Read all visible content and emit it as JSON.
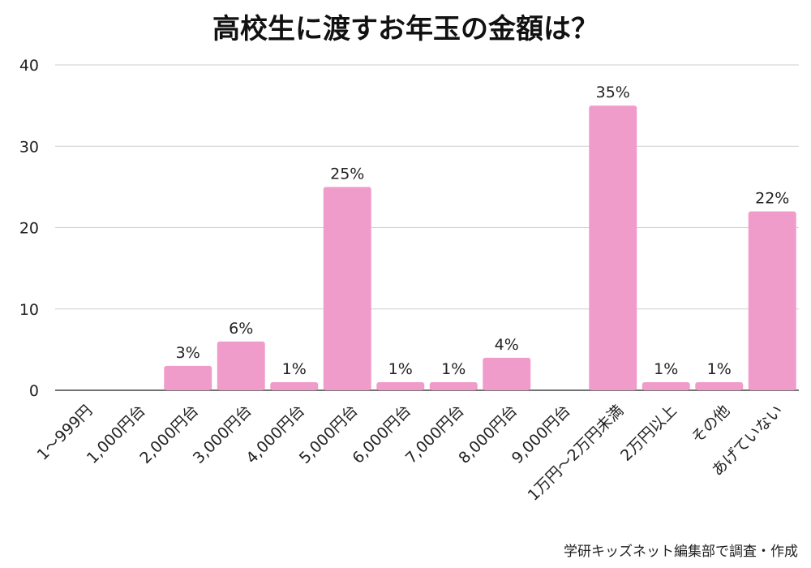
{
  "chart_data": {
    "type": "bar",
    "title": "高校生に渡すお年玉の金額は？",
    "categories": [
      "1〜999円",
      "1,000円台",
      "2,000円台",
      "3,000円台",
      "4,000円台",
      "5,000円台",
      "6,000円台",
      "7,000円台",
      "8,000円台",
      "9,000円台",
      "1万円〜2万円未満",
      "2万円以上",
      "その他",
      "あげていない"
    ],
    "values": [
      0,
      0,
      3,
      6,
      1,
      25,
      1,
      1,
      4,
      0,
      35,
      1,
      1,
      22
    ],
    "data_labels": [
      "",
      "",
      "3%",
      "6%",
      "1%",
      "25%",
      "1%",
      "1%",
      "4%",
      "",
      "35%",
      "1%",
      "1%",
      "22%"
    ],
    "y_ticks": [
      0,
      10,
      20,
      30,
      40
    ],
    "ylim": [
      0,
      40
    ],
    "grid": true,
    "bar_color": "#f09cca",
    "xlabel": "",
    "ylabel": ""
  },
  "source_note": "学研キッズネット編集部で調査・作成"
}
